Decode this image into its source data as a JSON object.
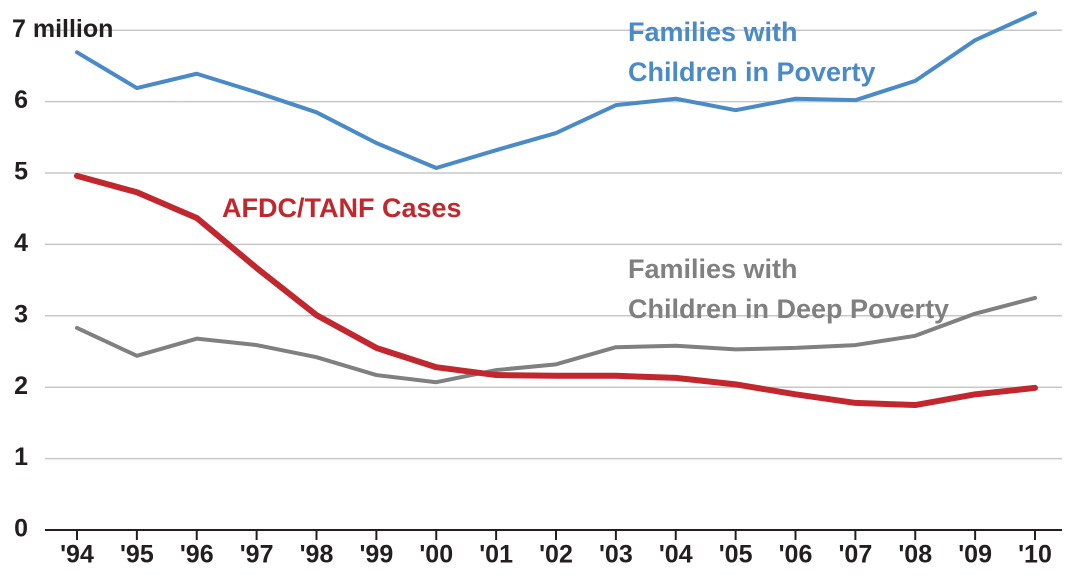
{
  "chart_data": {
    "type": "line",
    "categories": [
      "'94",
      "'95",
      "'96",
      "'97",
      "'98",
      "'99",
      "'00",
      "'01",
      "'02",
      "'03",
      "'04",
      "'05",
      "'06",
      "'07",
      "'08",
      "'09",
      "'10"
    ],
    "series": [
      {
        "name": "Families with\nChildren in Poverty",
        "color": "#4a8ac6",
        "values": [
          6.69,
          6.19,
          6.39,
          6.13,
          5.85,
          5.42,
          5.07,
          5.32,
          5.56,
          5.95,
          6.04,
          5.88,
          6.04,
          6.02,
          6.29,
          6.86,
          7.24
        ]
      },
      {
        "name": "AFDC/TANF Cases",
        "color": "#c1272d",
        "values": [
          4.96,
          4.73,
          4.37,
          3.67,
          3.01,
          2.55,
          2.28,
          2.17,
          2.16,
          2.16,
          2.13,
          2.04,
          1.9,
          1.78,
          1.75,
          1.9,
          1.99
        ]
      },
      {
        "name": "Families with\nChildren in Deep Poverty",
        "color": "#808080",
        "values": [
          2.83,
          2.44,
          2.68,
          2.59,
          2.42,
          2.17,
          2.07,
          2.24,
          2.32,
          2.56,
          2.58,
          2.53,
          2.55,
          2.59,
          2.72,
          3.03,
          3.25
        ]
      }
    ],
    "ylim": [
      0,
      7.4
    ],
    "yticks": [
      0,
      1,
      2,
      3,
      4,
      5,
      6,
      {
        "value": 7,
        "label": "7 million"
      }
    ],
    "grid": true
  }
}
